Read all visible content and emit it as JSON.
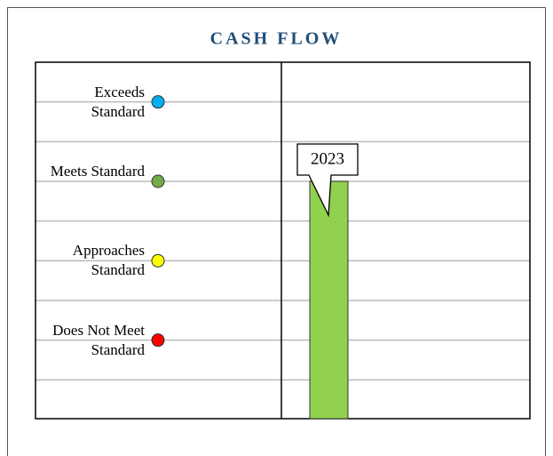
{
  "chart_data": {
    "type": "bar",
    "title": "CASH FLOW",
    "categories": [
      "2023"
    ],
    "values": [
      3
    ],
    "color": "#92d050",
    "ylim": [
      0,
      4.5
    ],
    "yticks": [
      {
        "value": 4,
        "label": "Exceeds Standard"
      },
      {
        "value": 3,
        "label": "Meets Standard"
      },
      {
        "value": 2,
        "label": "Approaches Standard"
      },
      {
        "value": 1,
        "label": "Does Not Meet Standard"
      }
    ],
    "tick_colors": [
      "#00b0f0",
      "#70ad47",
      "#ffff00",
      "#ff0000"
    ],
    "minor_yticks": [
      3.5,
      2.5,
      1.5,
      0.5
    ],
    "grid": true
  }
}
